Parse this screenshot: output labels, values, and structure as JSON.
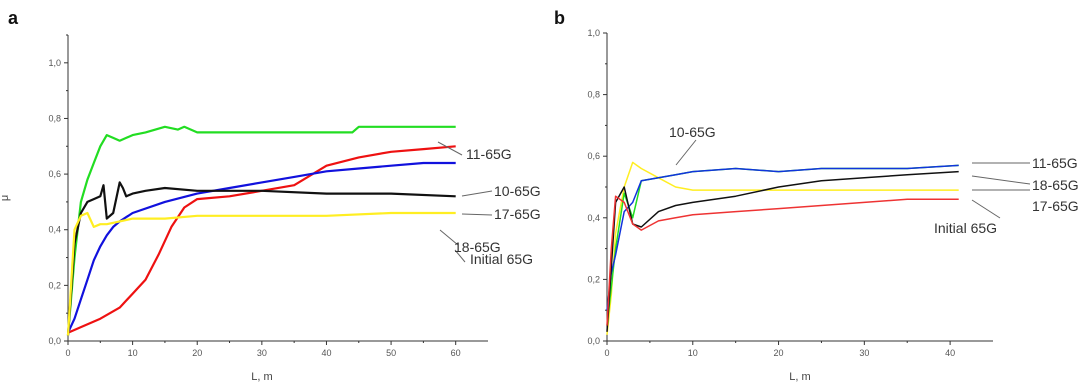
{
  "chart_data": [
    {
      "type": "line",
      "panel": "a",
      "xlabel": "L, m",
      "ylabel": "μ",
      "xlim": [
        0,
        65
      ],
      "ylim": [
        0,
        1.1
      ],
      "x_ticks": [
        "0",
        "10",
        "20",
        "30",
        "40",
        "50",
        "60"
      ],
      "y_ticks": [
        "0,0",
        "0,2",
        "0,4",
        "0,6",
        "0,8",
        "1,0"
      ],
      "grid": false,
      "series": [
        {
          "name": "11-65G",
          "color": "#22dd22",
          "x": [
            0,
            1,
            2,
            3,
            4,
            5,
            6,
            7,
            8,
            10,
            12,
            15,
            17,
            18,
            20,
            25,
            30,
            40,
            44,
            45,
            50,
            55,
            60
          ],
          "y": [
            0.02,
            0.3,
            0.5,
            0.58,
            0.64,
            0.7,
            0.74,
            0.73,
            0.72,
            0.74,
            0.75,
            0.77,
            0.76,
            0.77,
            0.75,
            0.75,
            0.75,
            0.75,
            0.75,
            0.77,
            0.77,
            0.77,
            0.77
          ]
        },
        {
          "name": "10-65G",
          "color": "#ee1111",
          "x": [
            0,
            2,
            5,
            8,
            10,
            12,
            14,
            16,
            18,
            20,
            25,
            30,
            35,
            40,
            45,
            50,
            55,
            60
          ],
          "y": [
            0.03,
            0.05,
            0.08,
            0.12,
            0.17,
            0.22,
            0.31,
            0.41,
            0.48,
            0.51,
            0.52,
            0.54,
            0.56,
            0.63,
            0.66,
            0.68,
            0.69,
            0.7
          ]
        },
        {
          "name": "17-65G",
          "color": "#1111dd",
          "x": [
            0,
            1,
            2,
            3,
            4,
            5,
            6,
            7,
            8,
            10,
            15,
            20,
            25,
            30,
            35,
            40,
            45,
            50,
            55,
            60
          ],
          "y": [
            0.03,
            0.08,
            0.15,
            0.22,
            0.29,
            0.34,
            0.38,
            0.41,
            0.43,
            0.46,
            0.5,
            0.53,
            0.55,
            0.57,
            0.59,
            0.61,
            0.62,
            0.63,
            0.64,
            0.64
          ]
        },
        {
          "name": "Initial 65G",
          "color": "#111111",
          "x": [
            0,
            1,
            2,
            3,
            4,
            5,
            5.5,
            6,
            7,
            8,
            8.5,
            9,
            10,
            12,
            15,
            20,
            25,
            30,
            40,
            50,
            60
          ],
          "y": [
            0.02,
            0.35,
            0.46,
            0.5,
            0.51,
            0.52,
            0.56,
            0.44,
            0.46,
            0.57,
            0.55,
            0.52,
            0.53,
            0.54,
            0.55,
            0.54,
            0.54,
            0.54,
            0.53,
            0.53,
            0.52
          ]
        },
        {
          "name": "18-65G",
          "color": "#ffee22",
          "x": [
            0,
            1,
            2,
            3,
            4,
            5,
            6,
            8,
            10,
            15,
            20,
            30,
            40,
            50,
            60
          ],
          "y": [
            0.02,
            0.4,
            0.45,
            0.46,
            0.41,
            0.42,
            0.42,
            0.43,
            0.44,
            0.44,
            0.45,
            0.45,
            0.45,
            0.46,
            0.46
          ]
        }
      ],
      "labels": [
        "11-65G",
        "10-65G",
        "17-65G",
        "Initial 65G",
        "18-65G"
      ]
    },
    {
      "type": "line",
      "panel": "b",
      "xlabel": "L, m",
      "ylabel": "",
      "xlim": [
        0,
        45
      ],
      "ylim": [
        0,
        1.0
      ],
      "x_ticks": [
        "0",
        "10",
        "20",
        "30",
        "40"
      ],
      "y_ticks": [
        "0,0",
        "0,2",
        "0,4",
        "0,6",
        "0,8",
        "1,0"
      ],
      "grid": false,
      "series": [
        {
          "name": "10-65G",
          "color": "#ffee22",
          "x": [
            0,
            0.5,
            1,
            2,
            3,
            4,
            6,
            8,
            10,
            15,
            20,
            25,
            30,
            35,
            41
          ],
          "y": [
            0.02,
            0.15,
            0.35,
            0.5,
            0.58,
            0.56,
            0.53,
            0.5,
            0.49,
            0.49,
            0.49,
            0.49,
            0.49,
            0.49,
            0.49
          ]
        },
        {
          "name": "11-65G",
          "color": "#22dd22",
          "x": [
            0,
            1,
            2,
            3,
            4,
            6,
            8,
            10,
            15,
            20,
            25,
            30,
            35,
            41
          ],
          "y": [
            0.05,
            0.3,
            0.48,
            0.4,
            0.52,
            0.53,
            0.54,
            0.55,
            0.56,
            0.55,
            0.56,
            0.56,
            0.56,
            0.57
          ]
        },
        {
          "name": "18-65G",
          "color": "#1133dd",
          "x": [
            0,
            0.5,
            1,
            2,
            3,
            4,
            6,
            8,
            10,
            15,
            20,
            25,
            30,
            35,
            41
          ],
          "y": [
            0.1,
            0.22,
            0.28,
            0.42,
            0.45,
            0.52,
            0.53,
            0.54,
            0.55,
            0.56,
            0.55,
            0.56,
            0.56,
            0.56,
            0.57
          ]
        },
        {
          "name": "17-65G",
          "color": "#111111",
          "x": [
            0,
            1,
            2,
            3,
            4,
            6,
            8,
            10,
            15,
            20,
            25,
            30,
            35,
            41
          ],
          "y": [
            0.03,
            0.45,
            0.5,
            0.38,
            0.37,
            0.42,
            0.44,
            0.45,
            0.47,
            0.5,
            0.52,
            0.53,
            0.54,
            0.55
          ]
        },
        {
          "name": "Initial 65G",
          "color": "#ee3333",
          "x": [
            0,
            0.5,
            1,
            2,
            3,
            4,
            6,
            8,
            10,
            15,
            20,
            25,
            30,
            35,
            41
          ],
          "y": [
            0.05,
            0.3,
            0.47,
            0.45,
            0.38,
            0.36,
            0.39,
            0.4,
            0.41,
            0.42,
            0.43,
            0.44,
            0.45,
            0.46,
            0.46
          ]
        }
      ],
      "labels": [
        "10-65G",
        "11-65G",
        "18-65G",
        "17-65G",
        "Initial 65G"
      ]
    }
  ],
  "figure": {
    "panel_a_letter": "a",
    "panel_b_letter": "b"
  }
}
